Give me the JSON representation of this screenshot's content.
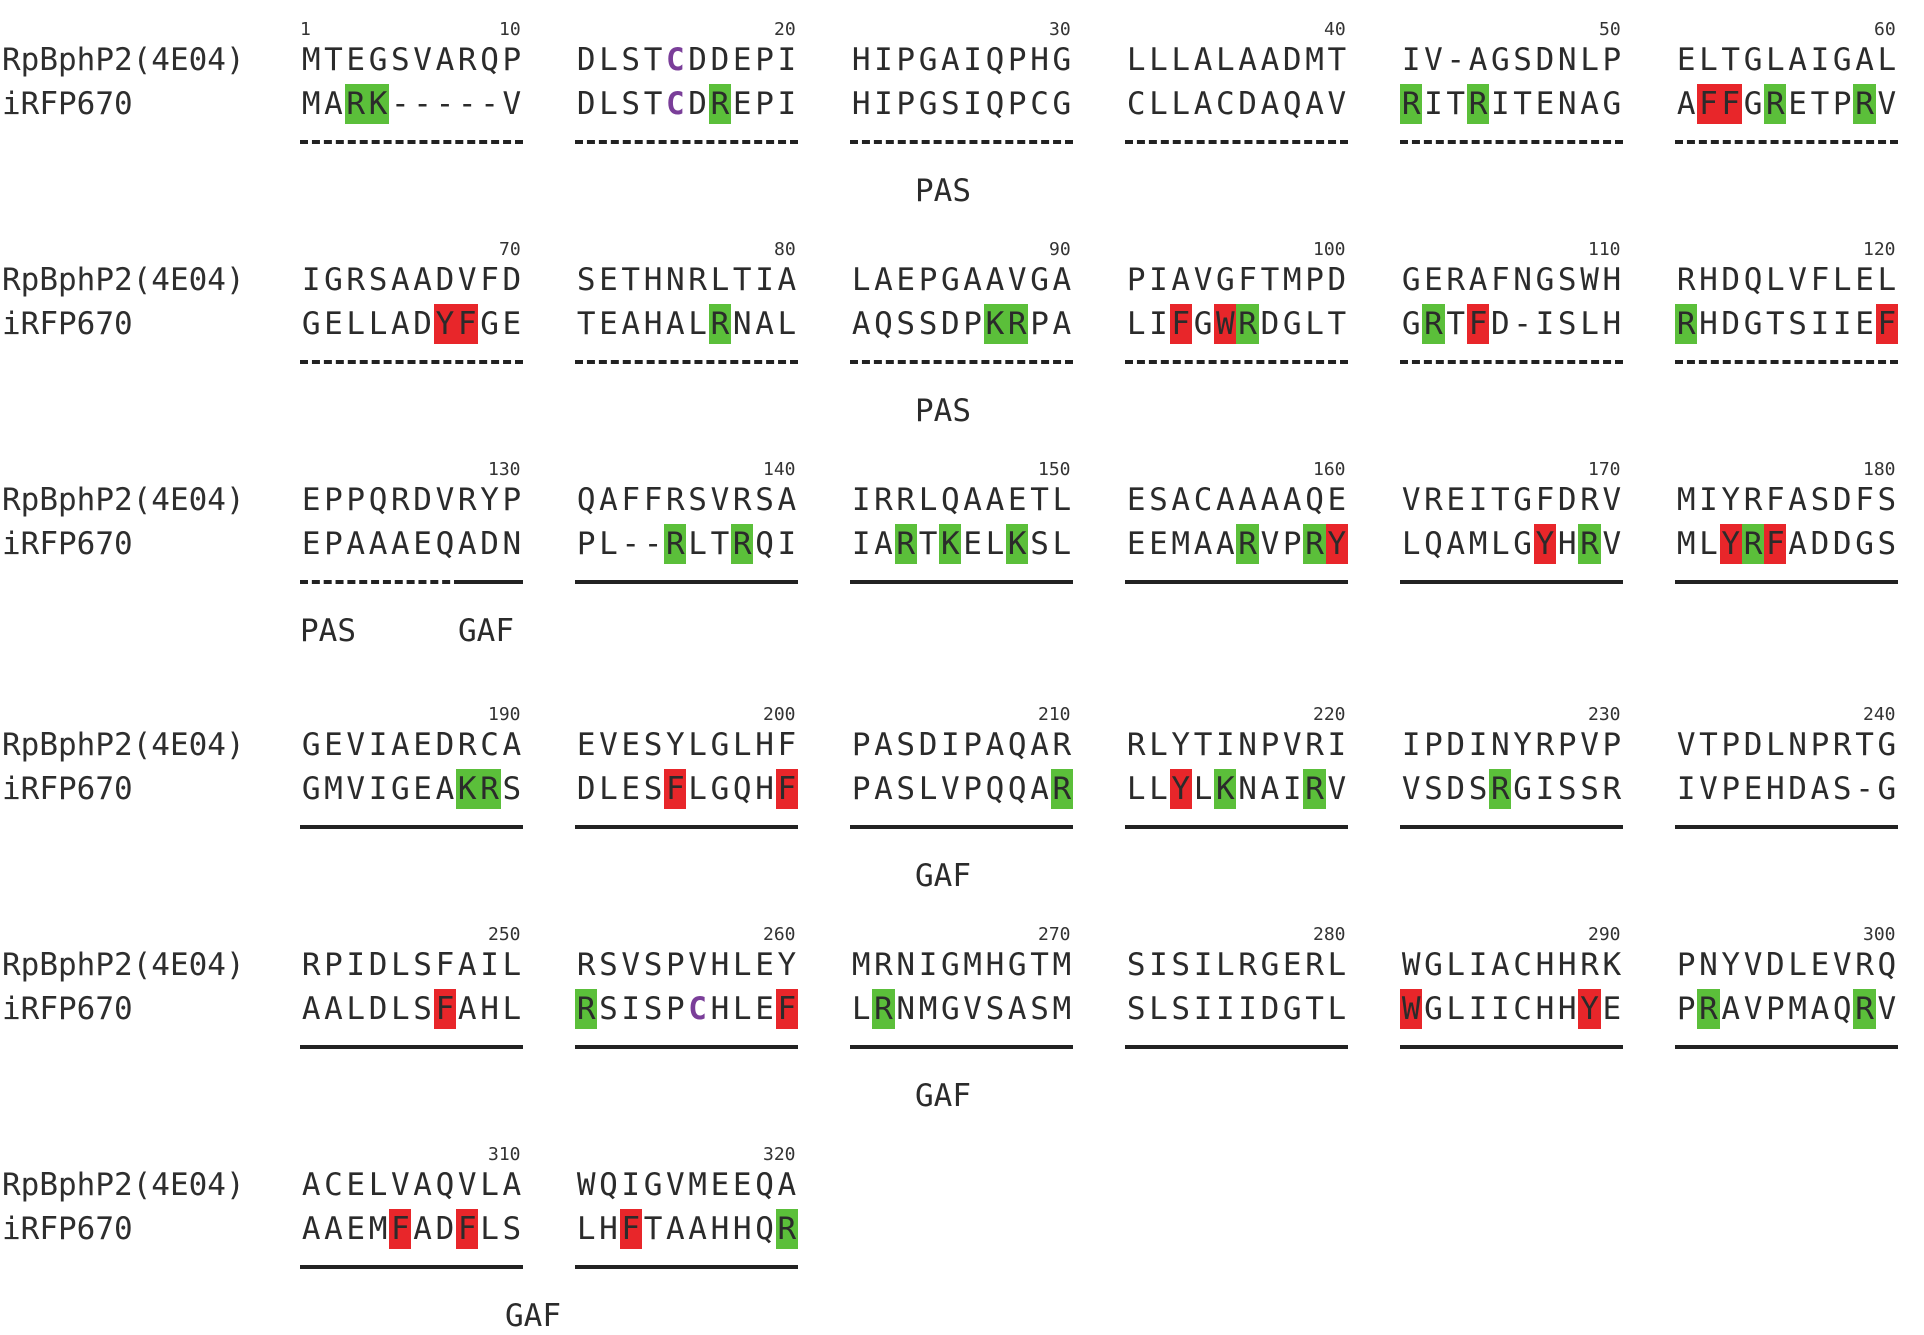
{
  "sequence_names": [
    "RpBphP2(4E04)",
    "iRFP670"
  ],
  "blocks": [
    {
      "row": 0,
      "col": 0,
      "number": "1",
      "num_side": "left",
      "seq1": "MTEGSVARQP",
      "seq2": "MARK-----V",
      "g": [
        2,
        3
      ],
      "r": [],
      "c1": [],
      "c2": [],
      "line": "dash"
    },
    {
      "row": 0,
      "col": 0,
      "number": "10",
      "num_side": "right",
      "seq1": "",
      "seq2": "",
      "g": [],
      "r": [],
      "c1": [],
      "c2": [],
      "line": "none"
    },
    {
      "row": 0,
      "col": 1,
      "number": "20",
      "num_side": "right",
      "seq1": "DLSTCDDEPI",
      "seq2": "DLSTCDREPI",
      "g": [
        6
      ],
      "r": [],
      "c1": [
        4
      ],
      "c2": [
        4
      ],
      "line": "dash"
    },
    {
      "row": 0,
      "col": 2,
      "number": "30",
      "num_side": "right",
      "seq1": "HIPGAIQPHG",
      "seq2": "HIPGSIQPCG",
      "g": [],
      "r": [],
      "c1": [],
      "c2": [],
      "line": "dash"
    },
    {
      "row": 0,
      "col": 3,
      "number": "40",
      "num_side": "right",
      "seq1": "LLLALAADMT",
      "seq2": "CLLACDAQAV",
      "g": [],
      "r": [],
      "c1": [],
      "c2": [],
      "line": "dash"
    },
    {
      "row": 0,
      "col": 4,
      "number": "50",
      "num_side": "right",
      "seq1": "IV-AGSDNLP",
      "seq2": "RITRITENAG",
      "g": [
        0,
        3
      ],
      "r": [],
      "c1": [],
      "c2": [],
      "line": "dash"
    },
    {
      "row": 0,
      "col": 5,
      "number": "60",
      "num_side": "right",
      "seq1": "ELTGLAIGAL",
      "seq2": "AFFGRETPRV",
      "g": [
        4,
        8
      ],
      "r": [
        1,
        2
      ],
      "c1": [],
      "c2": [],
      "line": "dash"
    },
    {
      "row": 1,
      "col": 0,
      "number": "70",
      "num_side": "right",
      "seq1": "IGRSAADVFD",
      "seq2": "GELLADYFGE",
      "g": [],
      "r": [
        6,
        7
      ],
      "c1": [],
      "c2": [],
      "line": "dash"
    },
    {
      "row": 1,
      "col": 1,
      "number": "80",
      "num_side": "right",
      "seq1": "SETHNRLTIA",
      "seq2": "TEAHALRNAL",
      "g": [
        6
      ],
      "r": [],
      "c1": [],
      "c2": [],
      "line": "dash"
    },
    {
      "row": 1,
      "col": 2,
      "number": "90",
      "num_side": "right",
      "seq1": "LAEPGAAVGA",
      "seq2": "AQSSDPKRPA",
      "g": [
        6,
        7
      ],
      "r": [],
      "c1": [],
      "c2": [],
      "line": "dash"
    },
    {
      "row": 1,
      "col": 3,
      "number": "100",
      "num_side": "right",
      "seq1": "PIAVGFTMPD",
      "seq2": "LIFGWRDGLT",
      "g": [
        5
      ],
      "r": [
        2,
        4
      ],
      "c1": [],
      "c2": [],
      "line": "dash"
    },
    {
      "row": 1,
      "col": 4,
      "number": "110",
      "num_side": "right",
      "seq1": "GERAFNGSWH",
      "seq2": "GRTFD-ISLH",
      "g": [
        1
      ],
      "r": [
        3
      ],
      "c1": [],
      "c2": [],
      "line": "dash"
    },
    {
      "row": 1,
      "col": 5,
      "number": "120",
      "num_side": "right",
      "seq1": "RHDQLVFLEL",
      "seq2": "RHDGTSIIEF",
      "g": [
        0
      ],
      "r": [
        9
      ],
      "c1": [],
      "c2": [],
      "line": "dash"
    },
    {
      "row": 2,
      "col": 0,
      "number": "130",
      "num_side": "right",
      "seq1": "EPPQRDVRYP",
      "seq2": "EPAAAEQADN",
      "g": [],
      "r": [],
      "c1": [],
      "c2": [],
      "line": "mixed"
    },
    {
      "row": 2,
      "col": 1,
      "number": "140",
      "num_side": "right",
      "seq1": "QAFFRSVRSA",
      "seq2": "PL--RLTRQI",
      "g": [
        4,
        7
      ],
      "r": [],
      "c1": [],
      "c2": [],
      "line": "solid"
    },
    {
      "row": 2,
      "col": 2,
      "number": "150",
      "num_side": "right",
      "seq1": "IRRLQAAETL",
      "seq2": "IARTKELKSL",
      "g": [
        2,
        4,
        7
      ],
      "r": [],
      "c1": [],
      "c2": [],
      "line": "solid"
    },
    {
      "row": 2,
      "col": 3,
      "number": "160",
      "num_side": "right",
      "seq1": "ESACAAAAQE",
      "seq2": "EEMAARVPRY",
      "g": [
        5,
        8
      ],
      "r": [
        9
      ],
      "c1": [],
      "c2": [],
      "line": "solid"
    },
    {
      "row": 2,
      "col": 4,
      "number": "170",
      "num_side": "right",
      "seq1": "VREITGFDRV",
      "seq2": "LQAMLGYHRV",
      "g": [
        8
      ],
      "r": [
        6
      ],
      "c1": [],
      "c2": [],
      "line": "solid"
    },
    {
      "row": 2,
      "col": 5,
      "number": "180",
      "num_side": "right",
      "seq1": "MIYRFASDFS",
      "seq2": "MLYRFADDGS",
      "g": [
        3
      ],
      "r": [
        2,
        4
      ],
      "c1": [],
      "c2": [],
      "line": "solid"
    },
    {
      "row": 3,
      "col": 0,
      "number": "190",
      "num_side": "right",
      "seq1": "GEVIAEDRCA",
      "seq2": "GMVIGEAKRS",
      "g": [
        7,
        8
      ],
      "r": [],
      "c1": [],
      "c2": [],
      "line": "solid"
    },
    {
      "row": 3,
      "col": 1,
      "number": "200",
      "num_side": "right",
      "seq1": "EVESYLGLHF",
      "seq2": "DLESFLGQHF",
      "g": [],
      "r": [
        4,
        9
      ],
      "c1": [],
      "c2": [],
      "line": "solid"
    },
    {
      "row": 3,
      "col": 2,
      "number": "210",
      "num_side": "right",
      "seq1": "PASDIPAQAR",
      "seq2": "PASLVPQQAR",
      "g": [
        9
      ],
      "r": [],
      "c1": [],
      "c2": [],
      "line": "solid"
    },
    {
      "row": 3,
      "col": 3,
      "number": "220",
      "num_side": "right",
      "seq1": "RLYTINPVRI",
      "seq2": "LLYLKNAIRV",
      "g": [
        4,
        8
      ],
      "r": [
        2
      ],
      "c1": [],
      "c2": [],
      "line": "solid"
    },
    {
      "row": 3,
      "col": 4,
      "number": "230",
      "num_side": "right",
      "seq1": "IPDINYRPVP",
      "seq2": "VSDSRGISSR",
      "g": [
        4
      ],
      "r": [],
      "c1": [],
      "c2": [],
      "line": "solid"
    },
    {
      "row": 3,
      "col": 5,
      "number": "240",
      "num_side": "right",
      "seq1": "VTPDLNPRTG",
      "seq2": "IVPEHDAS-G",
      "g": [],
      "r": [],
      "c1": [],
      "c2": [],
      "line": "solid"
    },
    {
      "row": 4,
      "col": 0,
      "number": "250",
      "num_side": "right",
      "seq1": "RPIDLSFAIL",
      "seq2": "AALDLSFAHL",
      "g": [],
      "r": [
        6
      ],
      "c1": [],
      "c2": [],
      "line": "solid"
    },
    {
      "row": 4,
      "col": 1,
      "number": "260",
      "num_side": "right",
      "seq1": "RSVSPVHLEY",
      "seq2": "RSISPCHLEF",
      "g": [
        0
      ],
      "r": [
        9
      ],
      "c1": [],
      "c2": [
        5
      ],
      "line": "solid"
    },
    {
      "row": 4,
      "col": 2,
      "number": "270",
      "num_side": "right",
      "seq1": "MRNIGMHGTM",
      "seq2": "LRNMGVSASM",
      "g": [
        1
      ],
      "r": [],
      "c1": [],
      "c2": [],
      "line": "solid"
    },
    {
      "row": 4,
      "col": 3,
      "number": "280",
      "num_side": "right",
      "seq1": "SISILRGERL",
      "seq2": "SLSIIIDGTL",
      "g": [],
      "r": [],
      "c1": [],
      "c2": [],
      "line": "solid"
    },
    {
      "row": 4,
      "col": 4,
      "number": "290",
      "num_side": "right",
      "seq1": "WGLIACHHRK",
      "seq2": "WGLIICHHYE",
      "g": [],
      "r": [
        0,
        8
      ],
      "c1": [],
      "c2": [],
      "line": "solid"
    },
    {
      "row": 4,
      "col": 5,
      "number": "300",
      "num_side": "right",
      "seq1": "PNYVDLEVRQ",
      "seq2": "PRAVPMAQRV",
      "g": [
        1,
        8
      ],
      "r": [],
      "c1": [],
      "c2": [],
      "line": "solid"
    },
    {
      "row": 5,
      "col": 0,
      "number": "310",
      "num_side": "right",
      "seq1": "ACELVAQVLA",
      "seq2": "AAEMFADFLS",
      "g": [],
      "r": [
        4,
        7
      ],
      "c1": [],
      "c2": [],
      "line": "solid"
    },
    {
      "row": 5,
      "col": 1,
      "number": "320",
      "num_side": "right",
      "seq1": "WQIGVMEEQA",
      "seq2": "LHFTAAHHQR",
      "g": [
        9
      ],
      "r": [
        2
      ],
      "c1": [],
      "c2": [],
      "line": "solid"
    }
  ],
  "domain_labels": [
    {
      "row": 0,
      "text": "PAS",
      "pos": "center"
    },
    {
      "row": 1,
      "text": "PAS",
      "pos": "center"
    },
    {
      "row": 2,
      "text": "PAS",
      "pos": "left"
    },
    {
      "row": 2,
      "text": "GAF",
      "pos": "mid-left"
    },
    {
      "row": 3,
      "text": "GAF",
      "pos": "center"
    },
    {
      "row": 4,
      "text": "GAF",
      "pos": "center"
    },
    {
      "row": 5,
      "text": "GAF",
      "pos": "center-left"
    }
  ],
  "colors": {
    "identity_green": "#5bbf3a",
    "contact_red": "#e8262a",
    "cysteine_purple": "#7a3e99"
  }
}
